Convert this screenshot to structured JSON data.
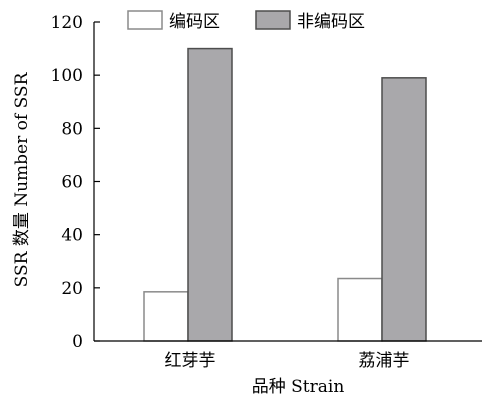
{
  "chart_data": {
    "type": "bar",
    "categories": [
      "红芽芋",
      "荔浦芋"
    ],
    "series": [
      {
        "name": "编码区",
        "values": [
          18.5,
          23.5
        ],
        "color": "#ffffff"
      },
      {
        "name": "非编码区",
        "values": [
          110,
          99
        ],
        "color": "#a9a8ab"
      }
    ],
    "xlabel": "品种 Strain",
    "ylabel": "SSR 数量 Number of SSR",
    "ylim": [
      0,
      120
    ],
    "yticks": [
      0,
      20,
      40,
      60,
      80,
      100,
      120
    ],
    "grid": false,
    "legend_position": "top"
  }
}
